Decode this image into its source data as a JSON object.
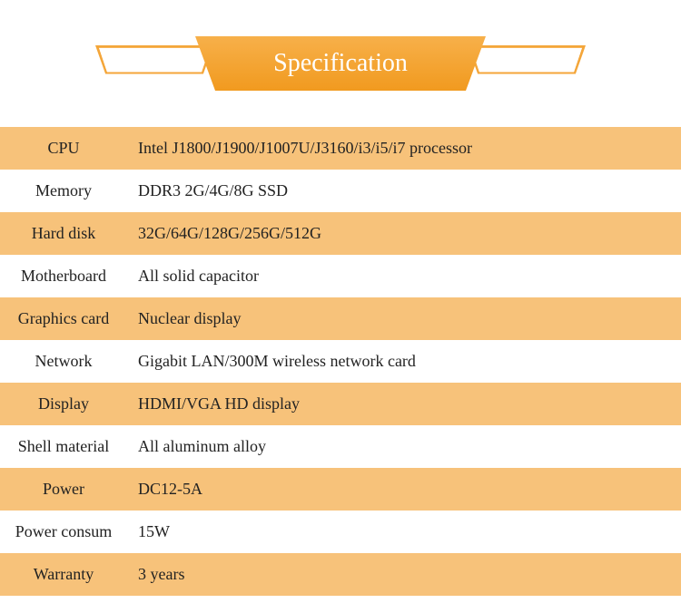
{
  "header": {
    "title": "Specification",
    "banner_fill": "#f19a1f",
    "banner_fill_light": "#f7b04a",
    "tab_border": "#f4a63a",
    "title_color": "#ffffff",
    "title_fontsize": 28
  },
  "table": {
    "row_colors": {
      "odd": "#f7c27a",
      "even": "#ffffff"
    },
    "label_width": 140,
    "font_size": 18,
    "rows": [
      {
        "label": "CPU",
        "value": "Intel J1800/J1900/J1007U/J3160/i3/i5/i7 processor"
      },
      {
        "label": "Memory",
        "value": "DDR3 2G/4G/8G SSD"
      },
      {
        "label": "Hard disk",
        "value": "32G/64G/128G/256G/512G"
      },
      {
        "label": "Motherboard",
        "value": "All solid capacitor"
      },
      {
        "label": "Graphics card",
        "value": "Nuclear display"
      },
      {
        "label": "Network",
        "value": "Gigabit LAN/300M wireless network card"
      },
      {
        "label": "Display",
        "value": "HDMI/VGA HD display"
      },
      {
        "label": "Shell material",
        "value": "All aluminum alloy"
      },
      {
        "label": "Power",
        "value": "DC12-5A"
      },
      {
        "label": "Power consum",
        "value": "15W"
      },
      {
        "label": "Warranty",
        "value": "3 years"
      }
    ]
  }
}
